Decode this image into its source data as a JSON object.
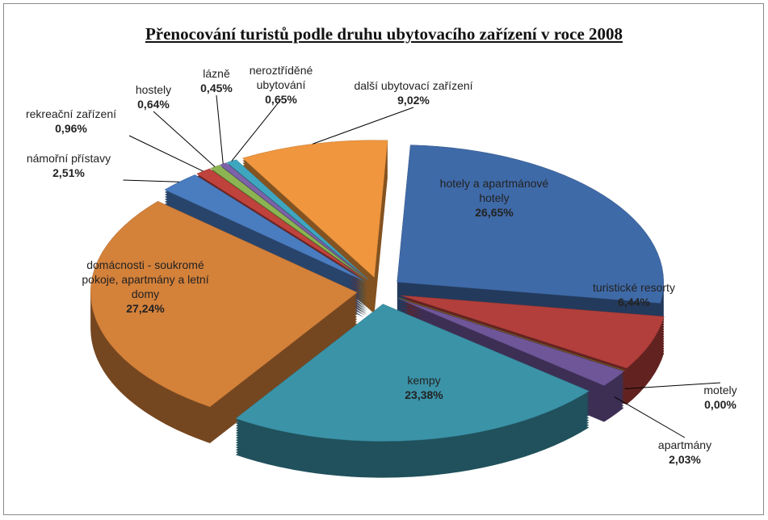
{
  "chart_data": {
    "type": "pie",
    "title": "Přenocování turistů podle druhu ubytovacího zařízení v roce 2008",
    "categories": [
      "hotely a apartmánové hotely",
      "turistické resorty",
      "motely",
      "apartmány",
      "kempy",
      "domácnosti - soukromé pokoje, apartmány a letní domy",
      "námořní přístavy",
      "rekreační zařízení",
      "hostely",
      "lázně",
      "neroztříděné ubytování",
      "další ubytovací zařízení"
    ],
    "values": [
      26.65,
      6.44,
      0.0,
      2.03,
      23.38,
      27.24,
      2.51,
      0.96,
      0.64,
      0.45,
      0.65,
      9.02
    ],
    "value_labels": [
      "26,65%",
      "6,44%",
      "0,00%",
      "2,03%",
      "23,38%",
      "27,24%",
      "2,51%",
      "0,96%",
      "0,64%",
      "0,45%",
      "0,65%",
      "9,02%"
    ],
    "colors": [
      "#3f6aa8",
      "#b23f3b",
      "#86a845",
      "#6f5699",
      "#3b93a8",
      "#d4813a",
      "#4a7cc0",
      "#c0423d",
      "#8cb452",
      "#7c62a8",
      "#3fa6c0",
      "#f0963e"
    ]
  }
}
